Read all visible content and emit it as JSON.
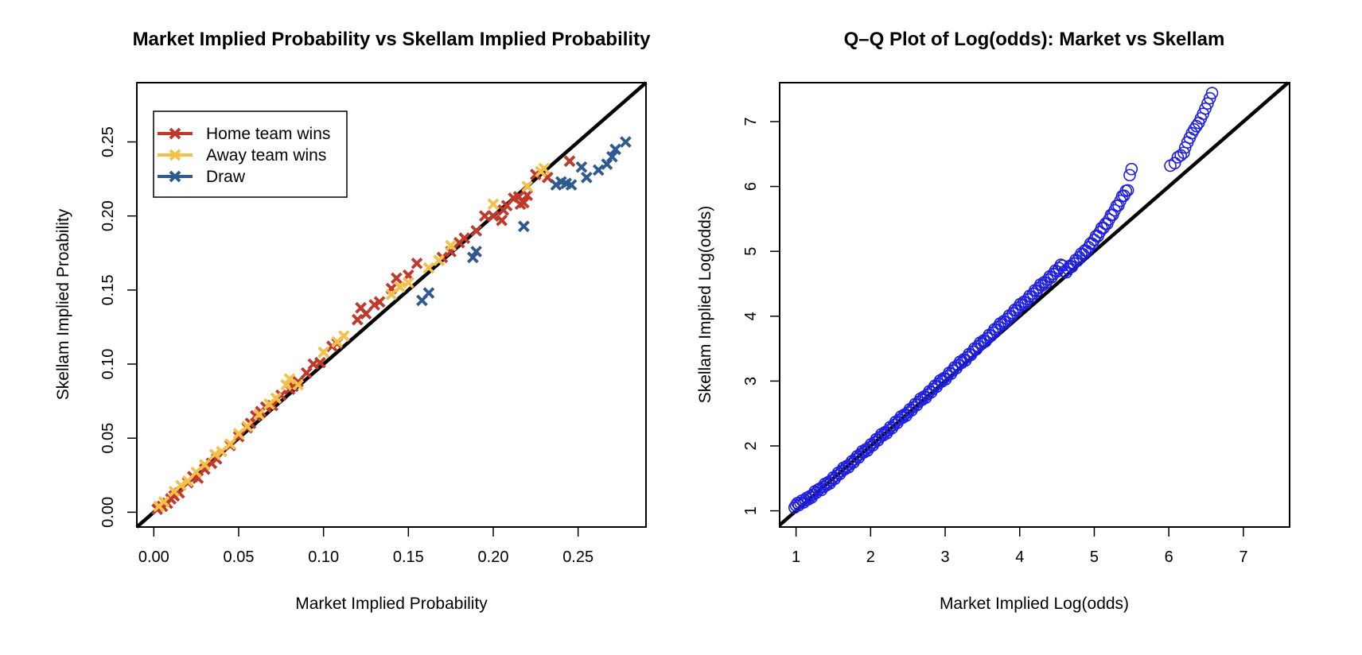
{
  "chart_data": [
    {
      "type": "scatter",
      "title": "Market Implied Probability vs Skellam Implied Probability",
      "xlabel": "Market Implied Probability",
      "ylabel": "Skellam Implied Proability",
      "xlim": [
        -0.01,
        0.29
      ],
      "ylim": [
        -0.01,
        0.29
      ],
      "x_ticks": [
        "0.00",
        "0.05",
        "0.10",
        "0.15",
        "0.20",
        "0.25"
      ],
      "y_ticks": [
        "0.00",
        "0.05",
        "0.10",
        "0.15",
        "0.20",
        "0.25"
      ],
      "marker": "x",
      "reference_line": "y = x",
      "legend_position": "top-left",
      "series": [
        {
          "name": "Home team wins",
          "color": "#c0392b",
          "points": [
            [
              0.002,
              0.002
            ],
            [
              0.005,
              0.004
            ],
            [
              0.008,
              0.006
            ],
            [
              0.01,
              0.009
            ],
            [
              0.012,
              0.011
            ],
            [
              0.015,
              0.013
            ],
            [
              0.02,
              0.02
            ],
            [
              0.023,
              0.024
            ],
            [
              0.026,
              0.023
            ],
            [
              0.03,
              0.029
            ],
            [
              0.034,
              0.033
            ],
            [
              0.037,
              0.036
            ],
            [
              0.045,
              0.045
            ],
            [
              0.05,
              0.051
            ],
            [
              0.055,
              0.057
            ],
            [
              0.057,
              0.06
            ],
            [
              0.06,
              0.065
            ],
            [
              0.063,
              0.068
            ],
            [
              0.066,
              0.071
            ],
            [
              0.07,
              0.072
            ],
            [
              0.075,
              0.079
            ],
            [
              0.08,
              0.083
            ],
            [
              0.082,
              0.085
            ],
            [
              0.085,
              0.088
            ],
            [
              0.09,
              0.094
            ],
            [
              0.094,
              0.1
            ],
            [
              0.098,
              0.101
            ],
            [
              0.105,
              0.112
            ],
            [
              0.108,
              0.114
            ],
            [
              0.12,
              0.13
            ],
            [
              0.122,
              0.138
            ],
            [
              0.125,
              0.134
            ],
            [
              0.13,
              0.14
            ],
            [
              0.133,
              0.142
            ],
            [
              0.14,
              0.151
            ],
            [
              0.143,
              0.158
            ],
            [
              0.15,
              0.16
            ],
            [
              0.155,
              0.168
            ],
            [
              0.17,
              0.172
            ],
            [
              0.175,
              0.176
            ],
            [
              0.18,
              0.182
            ],
            [
              0.183,
              0.185
            ],
            [
              0.19,
              0.19
            ],
            [
              0.195,
              0.2
            ],
            [
              0.2,
              0.2
            ],
            [
              0.205,
              0.197
            ],
            [
              0.206,
              0.204
            ],
            [
              0.208,
              0.207
            ],
            [
              0.212,
              0.212
            ],
            [
              0.215,
              0.213
            ],
            [
              0.216,
              0.208
            ],
            [
              0.218,
              0.209
            ],
            [
              0.22,
              0.214
            ],
            [
              0.225,
              0.228
            ],
            [
              0.232,
              0.226
            ],
            [
              0.245,
              0.237
            ]
          ]
        },
        {
          "name": "Away team wins",
          "color": "#f5c04a",
          "points": [
            [
              0.003,
              0.004
            ],
            [
              0.006,
              0.007
            ],
            [
              0.012,
              0.014
            ],
            [
              0.016,
              0.018
            ],
            [
              0.02,
              0.021
            ],
            [
              0.025,
              0.027
            ],
            [
              0.03,
              0.032
            ],
            [
              0.036,
              0.039
            ],
            [
              0.04,
              0.041
            ],
            [
              0.045,
              0.046
            ],
            [
              0.05,
              0.053
            ],
            [
              0.055,
              0.058
            ],
            [
              0.062,
              0.066
            ],
            [
              0.068,
              0.073
            ],
            [
              0.072,
              0.077
            ],
            [
              0.078,
              0.086
            ],
            [
              0.08,
              0.09
            ],
            [
              0.085,
              0.086
            ],
            [
              0.1,
              0.108
            ],
            [
              0.108,
              0.115
            ],
            [
              0.112,
              0.119
            ],
            [
              0.14,
              0.147
            ],
            [
              0.145,
              0.152
            ],
            [
              0.15,
              0.155
            ],
            [
              0.162,
              0.165
            ],
            [
              0.168,
              0.17
            ],
            [
              0.175,
              0.18
            ],
            [
              0.2,
              0.208
            ],
            [
              0.22,
              0.22
            ],
            [
              0.228,
              0.23
            ],
            [
              0.23,
              0.232
            ]
          ]
        },
        {
          "name": "Draw",
          "color": "#2e5a91",
          "points": [
            [
              0.158,
              0.143
            ],
            [
              0.162,
              0.148
            ],
            [
              0.188,
              0.172
            ],
            [
              0.19,
              0.176
            ],
            [
              0.218,
              0.193
            ],
            [
              0.237,
              0.221
            ],
            [
              0.24,
              0.223
            ],
            [
              0.243,
              0.222
            ],
            [
              0.246,
              0.221
            ],
            [
              0.252,
              0.233
            ],
            [
              0.255,
              0.226
            ],
            [
              0.262,
              0.231
            ],
            [
              0.267,
              0.235
            ],
            [
              0.27,
              0.24
            ],
            [
              0.272,
              0.245
            ],
            [
              0.278,
              0.25
            ]
          ]
        }
      ]
    },
    {
      "type": "scatter",
      "title": "Q–Q Plot of Log(odds): Market vs Skellam",
      "xlabel": "Market Implied Log(odds)",
      "ylabel": "Skellam Implied Log(odds)",
      "xlim": [
        0.78,
        7.62
      ],
      "ylim": [
        0.75,
        7.6
      ],
      "x_ticks": [
        "1",
        "2",
        "3",
        "4",
        "5",
        "6",
        "7"
      ],
      "y_ticks": [
        "1",
        "2",
        "3",
        "4",
        "5",
        "6",
        "7"
      ],
      "marker": "open-circle",
      "reference_line": "y = x",
      "series": [
        {
          "color": "#1f1fe0",
          "x_start": 0.98,
          "x_end": 5.5,
          "count": 190,
          "y_start": 1.08,
          "y_end": 6.25
        },
        {
          "color": "#1f1fe0",
          "points": [
            [
              6.02,
              6.32
            ],
            [
              6.08,
              6.36
            ],
            [
              6.12,
              6.45
            ],
            [
              6.16,
              6.48
            ],
            [
              6.2,
              6.52
            ],
            [
              6.22,
              6.6
            ],
            [
              6.25,
              6.68
            ],
            [
              6.28,
              6.75
            ],
            [
              6.31,
              6.82
            ],
            [
              6.34,
              6.88
            ],
            [
              6.37,
              6.93
            ],
            [
              6.4,
              6.98
            ],
            [
              6.43,
              7.05
            ],
            [
              6.46,
              7.12
            ],
            [
              6.49,
              7.2
            ],
            [
              6.52,
              7.28
            ],
            [
              6.55,
              7.36
            ],
            [
              6.58,
              7.44
            ]
          ]
        }
      ]
    }
  ]
}
